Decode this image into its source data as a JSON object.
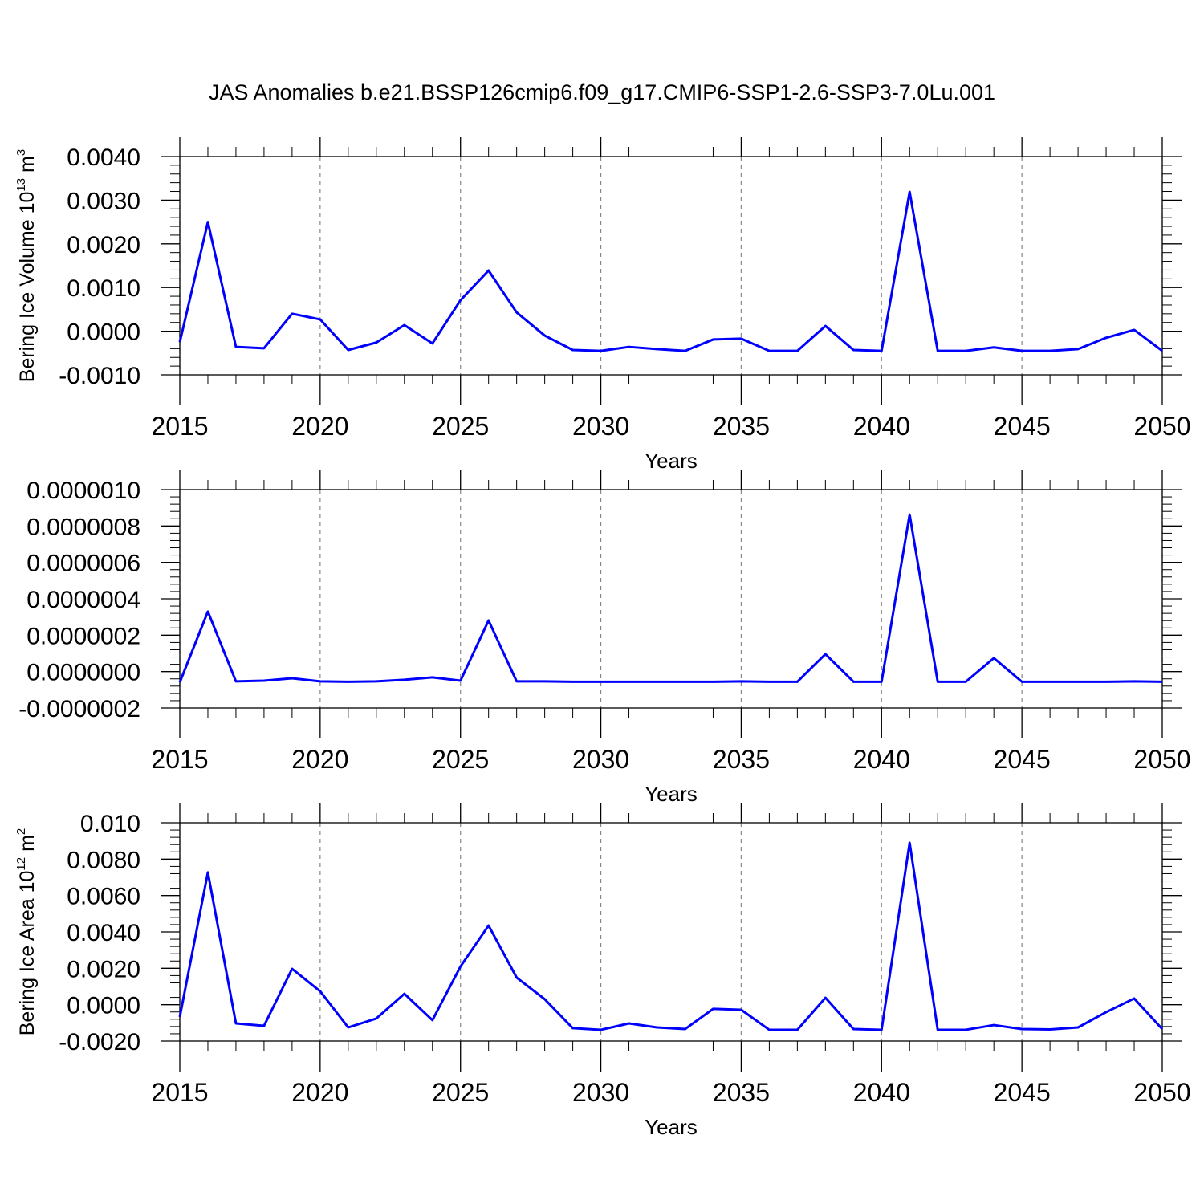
{
  "title": "JAS Anomalies b.e21.BSSP126cmip6.f09_g17.CMIP6-SSP1-2.6-SSP3-7.0Lu.001",
  "chart_data": [
    {
      "type": "line",
      "xlabel": "Years",
      "ylabel": {
        "text": "Bering Ice Volume 10",
        "exponent": "13",
        "unit": " m",
        "unit_exponent": "3"
      },
      "x": [
        2015,
        2016,
        2017,
        2018,
        2019,
        2020,
        2021,
        2022,
        2023,
        2024,
        2025,
        2026,
        2027,
        2028,
        2029,
        2030,
        2031,
        2032,
        2033,
        2034,
        2035,
        2036,
        2037,
        2038,
        2039,
        2040,
        2041,
        2042,
        2043,
        2044,
        2045,
        2046,
        2047,
        2048,
        2049,
        2050
      ],
      "series": [
        {
          "color": "#0000ff",
          "values": [
            -0.00025,
            0.0025,
            -0.00036,
            -0.00039,
            0.0004,
            0.00027,
            -0.00043,
            -0.00026,
            0.00014,
            -0.00028,
            0.00071,
            0.00139,
            0.00043,
            -0.0001,
            -0.00043,
            -0.00045,
            -0.00036,
            -0.00041,
            -0.00045,
            -0.00019,
            -0.00017,
            -0.00045,
            -0.00045,
            0.00012,
            -0.00043,
            -0.00045,
            0.00319,
            -0.00045,
            -0.00045,
            -0.00037,
            -0.00045,
            -0.00045,
            -0.00041,
            -0.00015,
            3e-05,
            -0.00045
          ]
        }
      ],
      "xlim": [
        2015,
        2050
      ],
      "xticks": [
        2015,
        2020,
        2025,
        2030,
        2035,
        2040,
        2045,
        2050
      ],
      "ylim": [
        -0.001,
        0.004
      ],
      "yticks": [
        {
          "value": -0.001,
          "label": "-0.0010"
        },
        {
          "value": 0,
          "label": "0.0000"
        },
        {
          "value": 0.001,
          "label": "0.0010"
        },
        {
          "value": 0.002,
          "label": "0.0020"
        },
        {
          "value": 0.003,
          "label": "0.0030"
        },
        {
          "value": 0.004,
          "label": "0.0040"
        }
      ],
      "grid": "x"
    },
    {
      "type": "line",
      "xlabel": "Years",
      "x": [
        2015,
        2016,
        2017,
        2018,
        2019,
        2020,
        2021,
        2022,
        2023,
        2024,
        2025,
        2026,
        2027,
        2028,
        2029,
        2030,
        2031,
        2032,
        2033,
        2034,
        2035,
        2036,
        2037,
        2038,
        2039,
        2040,
        2041,
        2042,
        2043,
        2044,
        2045,
        2046,
        2047,
        2048,
        2049,
        2050
      ],
      "series": [
        {
          "color": "#0000ff",
          "values": [
            -5.9e-08,
            3.3e-07,
            -5.4e-08,
            -5e-08,
            -3.7e-08,
            -5.4e-08,
            -5.6e-08,
            -5.4e-08,
            -4.5e-08,
            -3.2e-08,
            -5e-08,
            2.81e-07,
            -5.4e-08,
            -5.4e-08,
            -5.6e-08,
            -5.6e-08,
            -5.6e-08,
            -5.6e-08,
            -5.6e-08,
            -5.6e-08,
            -5.4e-08,
            -5.6e-08,
            -5.6e-08,
            9.6e-08,
            -5.6e-08,
            -5.6e-08,
            8.63e-07,
            -5.6e-08,
            -5.6e-08,
            7.4e-08,
            -5.6e-08,
            -5.6e-08,
            -5.6e-08,
            -5.6e-08,
            -5.4e-08,
            -5.6e-08
          ]
        }
      ],
      "xlim": [
        2015,
        2050
      ],
      "xticks": [
        2015,
        2020,
        2025,
        2030,
        2035,
        2040,
        2045,
        2050
      ],
      "ylim": [
        -2e-07,
        1e-06
      ],
      "yticks": [
        {
          "value": -2e-07,
          "label": "-0.0000002"
        },
        {
          "value": 0,
          "label": "0.0000000"
        },
        {
          "value": 2e-07,
          "label": "0.0000002"
        },
        {
          "value": 4e-07,
          "label": "0.0000004"
        },
        {
          "value": 6e-07,
          "label": "0.0000006"
        },
        {
          "value": 8e-07,
          "label": "0.0000008"
        },
        {
          "value": 1e-06,
          "label": "0.0000010"
        }
      ],
      "grid": "x"
    },
    {
      "type": "line",
      "xlabel": "Years",
      "ylabel": {
        "text": "Bering Ice Area 10",
        "exponent": "12",
        "unit": " m",
        "unit_exponent": "2"
      },
      "x": [
        2015,
        2016,
        2017,
        2018,
        2019,
        2020,
        2021,
        2022,
        2023,
        2024,
        2025,
        2026,
        2027,
        2028,
        2029,
        2030,
        2031,
        2032,
        2033,
        2034,
        2035,
        2036,
        2037,
        2038,
        2039,
        2040,
        2041,
        2042,
        2043,
        2044,
        2045,
        2046,
        2047,
        2048,
        2049,
        2050
      ],
      "series": [
        {
          "color": "#0000ff",
          "values": [
            -0.00067,
            0.00727,
            -0.00103,
            -0.00116,
            0.00197,
            0.00074,
            -0.00125,
            -0.00076,
            0.0006,
            -0.00085,
            0.0021,
            0.00435,
            0.00149,
            0.0003,
            -0.00129,
            -0.00138,
            -0.00103,
            -0.00125,
            -0.00134,
            -0.00023,
            -0.00028,
            -0.00138,
            -0.00138,
            0.00038,
            -0.00134,
            -0.00138,
            0.0089,
            -0.00138,
            -0.00138,
            -0.00112,
            -0.00134,
            -0.00136,
            -0.00125,
            -0.00041,
            0.00034,
            -0.00134
          ]
        }
      ],
      "xlim": [
        2015,
        2050
      ],
      "xticks": [
        2015,
        2020,
        2025,
        2030,
        2035,
        2040,
        2045,
        2050
      ],
      "ylim": [
        -0.002,
        0.01
      ],
      "yticks": [
        {
          "value": -0.002,
          "label": "-0.0020"
        },
        {
          "value": 0,
          "label": "0.0000"
        },
        {
          "value": 0.002,
          "label": "0.0020"
        },
        {
          "value": 0.004,
          "label": "0.0040"
        },
        {
          "value": 0.006,
          "label": "0.0060"
        },
        {
          "value": 0.008,
          "label": "0.0080"
        },
        {
          "value": 0.01,
          "label": "0.010"
        }
      ],
      "grid": "x"
    }
  ]
}
